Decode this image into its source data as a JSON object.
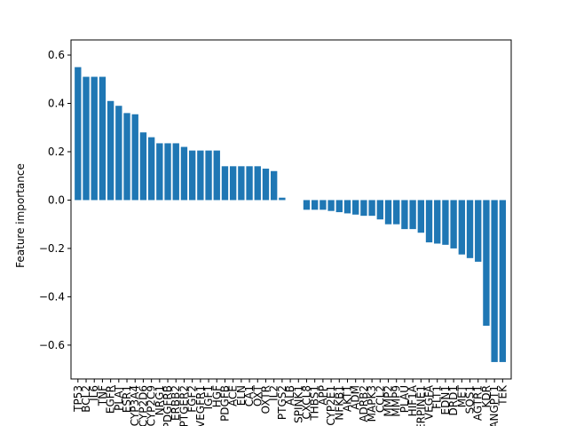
{
  "chart_data": {
    "type": "bar",
    "y_label": "Feature importance",
    "color": "#1f77b4",
    "categories": [
      "TP53",
      "BCL2",
      "IL6",
      "TNF",
      "EGFR",
      "PLAT",
      "ESR1",
      "CYP3A4",
      "CYP2D6",
      "CYP2C9",
      "NRG1",
      "PDGFRB",
      "ERBB2",
      "PTGER2",
      "FGF2",
      "VEGFR1",
      "IGF1",
      "HGF",
      "PDGFB",
      "ACE",
      "ELN",
      "CA1",
      "OXT",
      "OXTR",
      "IL2",
      "PTGS2",
      "ALB",
      "SPINK1",
      "CXCL8",
      "THBS1",
      "APP",
      "CYP2E1",
      "NFKB1",
      "AKT1",
      "ADM",
      "ADRB2",
      "MAPK3",
      "CCL2",
      "MMP2",
      "MMP9",
      "PLAU",
      "HIF1A",
      "SERPINE1",
      "VEGFA",
      "FLT1",
      "EDN1",
      "DRD1",
      "MET",
      "SOS1",
      "AGTR1",
      "KDR",
      "ANGPT1",
      "TEK"
    ],
    "values": [
      0.55,
      0.51,
      0.51,
      0.51,
      0.41,
      0.39,
      0.36,
      0.355,
      0.28,
      0.26,
      0.235,
      0.235,
      0.235,
      0.22,
      0.205,
      0.205,
      0.205,
      0.205,
      0.14,
      0.14,
      0.14,
      0.14,
      0.14,
      0.13,
      0.12,
      0.01,
      0,
      0,
      -0.04,
      -0.04,
      -0.04,
      -0.045,
      -0.05,
      -0.055,
      -0.06,
      -0.065,
      -0.065,
      -0.08,
      -0.1,
      -0.1,
      -0.12,
      -0.12,
      -0.135,
      -0.175,
      -0.18,
      -0.185,
      -0.2,
      -0.225,
      -0.24,
      -0.255,
      -0.52,
      -0.67,
      -0.67
    ],
    "ylim": [
      -0.74,
      0.6625
    ],
    "yticks": [
      {
        "value": -0.6,
        "label": "−0.6"
      },
      {
        "value": -0.4,
        "label": "−0.4"
      },
      {
        "value": -0.2,
        "label": "−0.2"
      },
      {
        "value": 0,
        "label": "0.0"
      },
      0.2,
      0.4,
      0.6
    ]
  }
}
